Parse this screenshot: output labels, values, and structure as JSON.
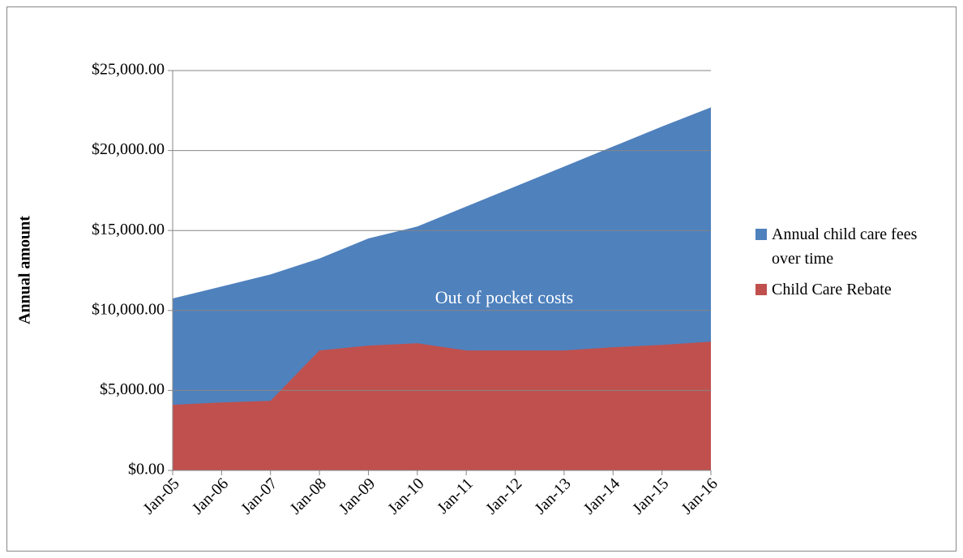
{
  "chart_data": {
    "type": "area",
    "y_label": "Annual amount",
    "annotation": "Out of pocket costs",
    "categories": [
      "Jan-05",
      "Jan-06",
      "Jan-07",
      "Jan-08",
      "Jan-09",
      "Jan-10",
      "Jan-11",
      "Jan-12",
      "Jan-13",
      "Jan-14",
      "Jan-15",
      "Jan-16"
    ],
    "series": [
      {
        "name": "Annual child care fees over time",
        "color": "#4f81bd",
        "values": [
          10750,
          11500,
          12250,
          13250,
          14500,
          15250,
          16500,
          17750,
          19000,
          20250,
          21500,
          22700
        ]
      },
      {
        "name": "Child Care Rebate",
        "color": "#c0504d",
        "values": [
          4100,
          4250,
          4350,
          7500,
          7800,
          7950,
          7500,
          7500,
          7500,
          7700,
          7850,
          8050
        ]
      }
    ],
    "ylim": [
      0,
      25000
    ],
    "yticks": [
      {
        "value": 0,
        "label": "$0.00"
      },
      {
        "value": 5000,
        "label": "$5,000.00"
      },
      {
        "value": 10000,
        "label": "$10,000.00"
      },
      {
        "value": 15000,
        "label": "$15,000.00"
      },
      {
        "value": 20000,
        "label": "$20,000.00"
      },
      {
        "value": 25000,
        "label": "$25,000.00"
      }
    ],
    "grid": true,
    "legend": "right"
  }
}
